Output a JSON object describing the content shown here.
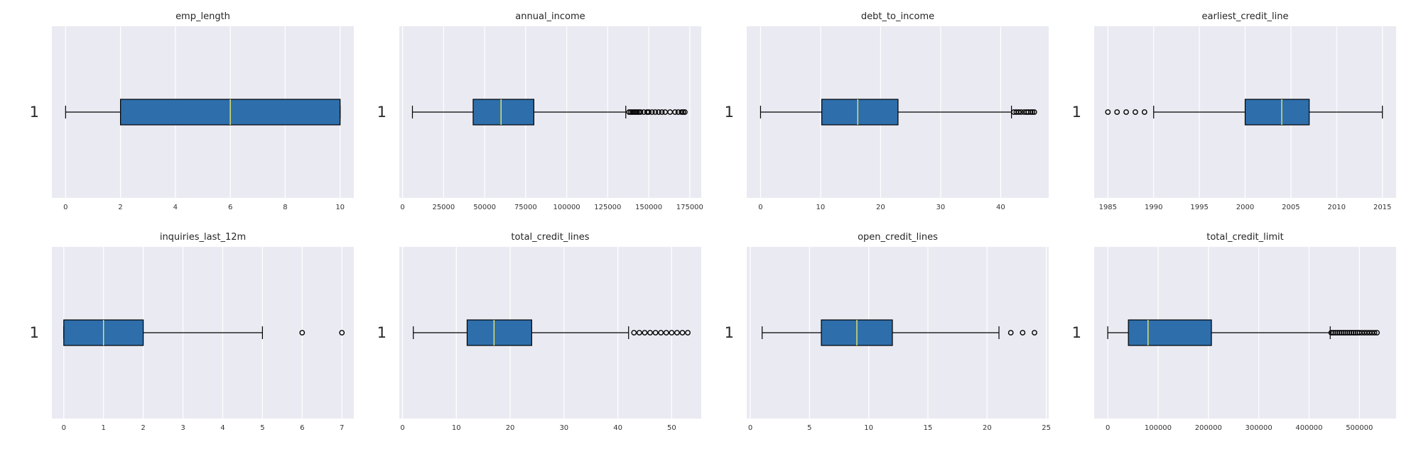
{
  "colors": {
    "background": "#eaeaf2",
    "grid": "#ffffff",
    "box_fill": "#2e6eab",
    "median": "#e8e86a",
    "line": "#000000"
  },
  "chart_data": [
    {
      "type": "boxplot",
      "orientation": "horizontal",
      "title": "emp_length",
      "category_label": "1",
      "xlim": [
        -0.5,
        10.5
      ],
      "xticks": [
        0,
        2,
        4,
        6,
        8,
        10
      ],
      "tick_labels": [
        "0",
        "2",
        "4",
        "6",
        "8",
        "10"
      ],
      "whisker_low": 0,
      "q1": 2,
      "median": 6,
      "q3": 10,
      "whisker_high": 10,
      "outliers": []
    },
    {
      "type": "boxplot",
      "orientation": "horizontal",
      "title": "annual_income",
      "category_label": "1",
      "xlim": [
        -2000,
        182000
      ],
      "xticks": [
        0,
        25000,
        50000,
        75000,
        100000,
        125000,
        150000,
        175000
      ],
      "tick_labels": [
        "0",
        "25000",
        "50000",
        "75000",
        "100000",
        "125000",
        "150000",
        "175000"
      ],
      "whisker_low": 6000,
      "q1": 43000,
      "median": 60000,
      "q3": 80000,
      "whisker_high": 136000,
      "outliers": [
        138000,
        139000,
        140000,
        141000,
        142000,
        143000,
        144000,
        145000,
        147000,
        149000,
        150000,
        152000,
        154000,
        156000,
        158000,
        160000,
        163000,
        166000,
        168000,
        170000,
        171000,
        172000
      ]
    },
    {
      "type": "boxplot",
      "orientation": "horizontal",
      "title": "debt_to_income",
      "category_label": "1",
      "xlim": [
        -2.3,
        48
      ],
      "xticks": [
        0,
        10,
        20,
        30,
        40
      ],
      "tick_labels": [
        "0",
        "10",
        "20",
        "30",
        "40"
      ],
      "whisker_low": 0,
      "q1": 10.2,
      "median": 16.2,
      "q3": 22.9,
      "whisker_high": 41.8,
      "outliers": [
        42.2,
        42.6,
        43.0,
        43.4,
        43.9,
        44.3,
        44.6,
        45.0,
        45.3,
        45.6
      ]
    },
    {
      "type": "boxplot",
      "orientation": "horizontal",
      "title": "earliest_credit_line",
      "category_label": "1",
      "xlim": [
        1983.5,
        2016.5
      ],
      "xticks": [
        1985,
        1990,
        1995,
        2000,
        2005,
        2010,
        2015
      ],
      "tick_labels": [
        "1985",
        "1990",
        "1995",
        "2000",
        "2005",
        "2010",
        "2015"
      ],
      "whisker_low": 1990,
      "q1": 2000,
      "median": 2004,
      "q3": 2007,
      "whisker_high": 2015,
      "outliers": [
        1985,
        1986,
        1987,
        1988,
        1989
      ]
    },
    {
      "type": "boxplot",
      "orientation": "horizontal",
      "title": "inquiries_last_12m",
      "category_label": "1",
      "xlim": [
        -0.3,
        7.3
      ],
      "xticks": [
        0,
        1,
        2,
        3,
        4,
        5,
        6,
        7
      ],
      "tick_labels": [
        "0",
        "1",
        "2",
        "3",
        "4",
        "5",
        "6",
        "7"
      ],
      "whisker_low": 0,
      "q1": 0,
      "median": 1,
      "q3": 2,
      "whisker_high": 5,
      "outliers": [
        6,
        7
      ]
    },
    {
      "type": "boxplot",
      "orientation": "horizontal",
      "title": "total_credit_lines",
      "category_label": "1",
      "xlim": [
        -0.6,
        55.5
      ],
      "xticks": [
        0,
        10,
        20,
        30,
        40,
        50
      ],
      "tick_labels": [
        "0",
        "10",
        "20",
        "30",
        "40",
        "50"
      ],
      "whisker_low": 2,
      "q1": 12,
      "median": 17,
      "q3": 24,
      "whisker_high": 42,
      "outliers": [
        43,
        44,
        45,
        46,
        47,
        48,
        49,
        50,
        51,
        52,
        53
      ]
    },
    {
      "type": "boxplot",
      "orientation": "horizontal",
      "title": "open_credit_lines",
      "category_label": "1",
      "xlim": [
        -0.3,
        25.2
      ],
      "xticks": [
        0,
        5,
        10,
        15,
        20,
        25
      ],
      "tick_labels": [
        "0",
        "5",
        "10",
        "15",
        "20",
        "25"
      ],
      "whisker_low": 1,
      "q1": 6,
      "median": 9,
      "q3": 12,
      "whisker_high": 21,
      "outliers": [
        22,
        23,
        24
      ]
    },
    {
      "type": "boxplot",
      "orientation": "horizontal",
      "title": "total_credit_limit",
      "category_label": "1",
      "xlim": [
        -27000,
        573000
      ],
      "xticks": [
        0,
        100000,
        200000,
        300000,
        400000,
        500000
      ],
      "tick_labels": [
        "0",
        "100000",
        "200000",
        "300000",
        "400000",
        "500000"
      ],
      "whisker_low": 0,
      "q1": 41000,
      "median": 80000,
      "q3": 206000,
      "whisker_high": 442000,
      "outliers": [
        444000,
        448000,
        452000,
        456000,
        460000,
        464000,
        468000,
        472000,
        476000,
        480000,
        484000,
        488000,
        492000,
        496000,
        500000,
        505000,
        510000,
        515000,
        520000,
        525000,
        530000,
        535000
      ]
    }
  ]
}
